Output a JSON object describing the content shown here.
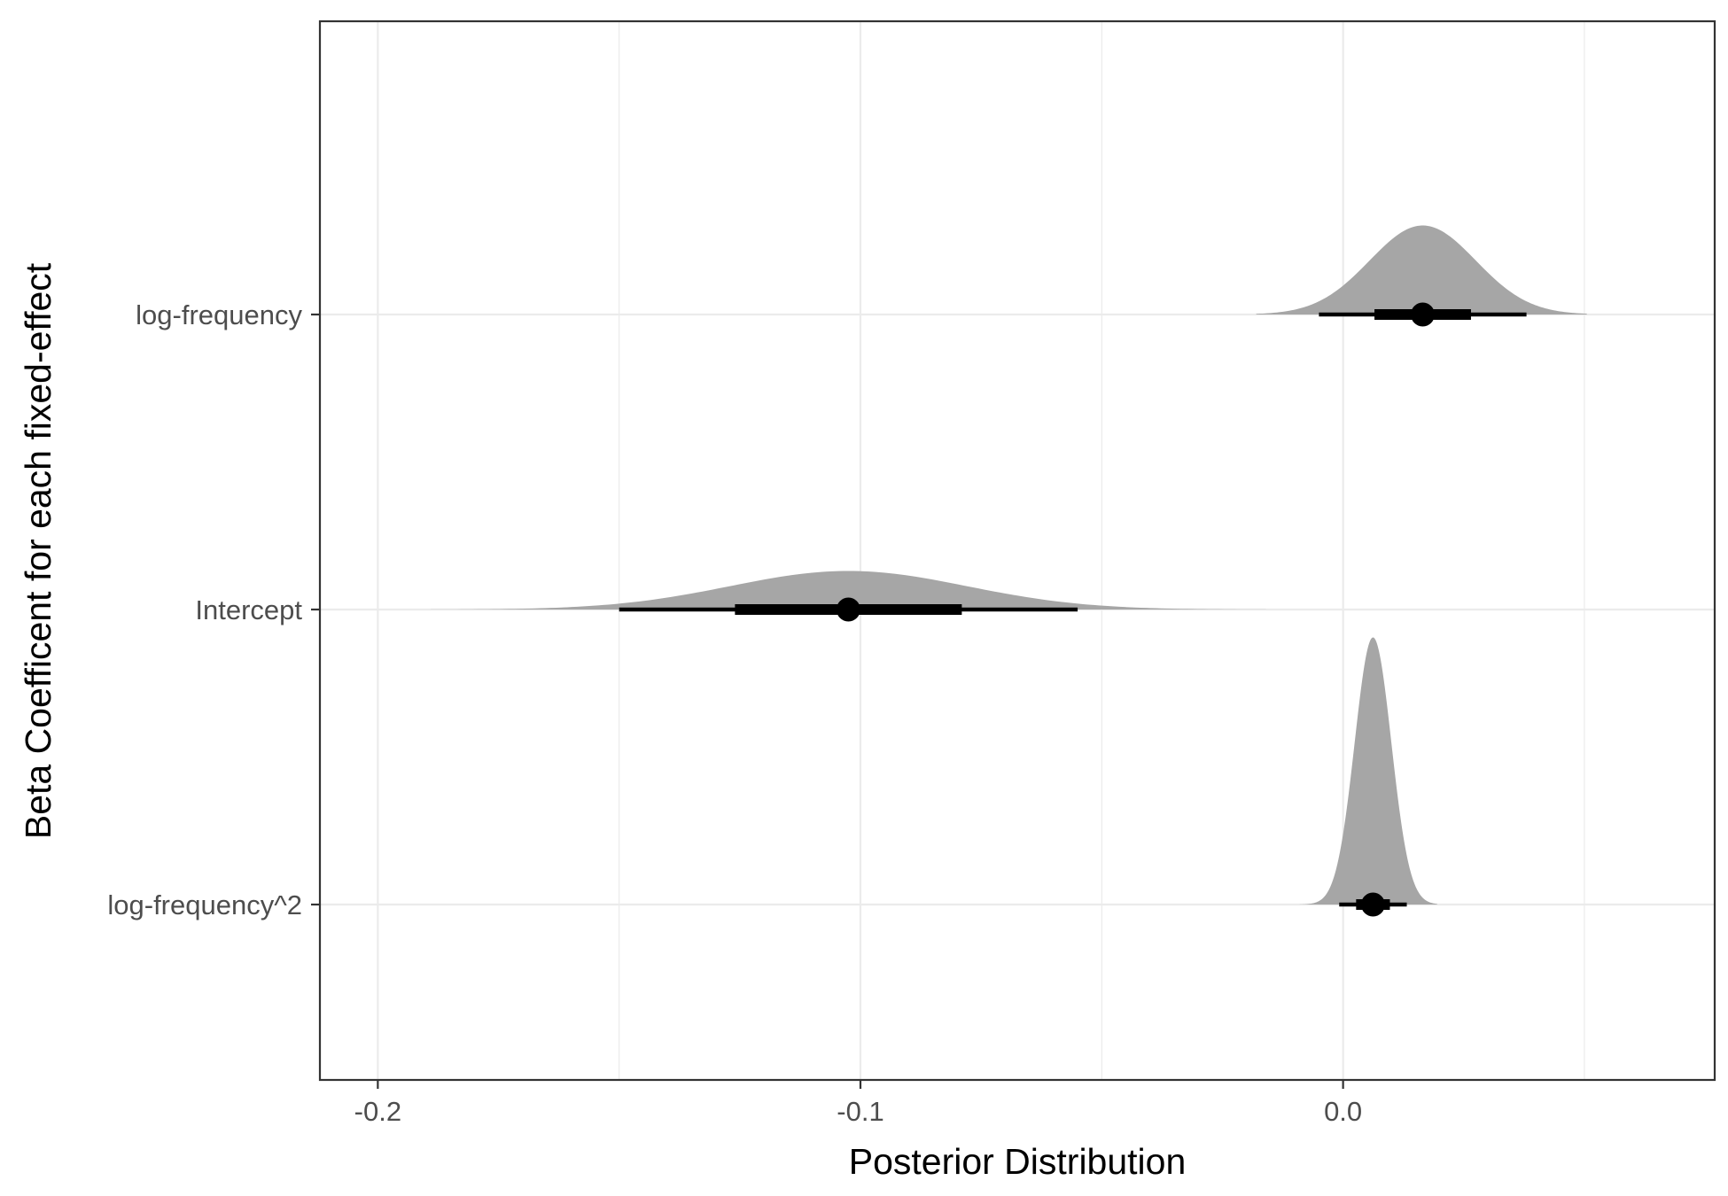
{
  "chart_data": {
    "type": "halfeye",
    "title": "",
    "xlabel": "Posterior Distribution",
    "ylabel": "Beta Coefficent for each fixed-effect",
    "xlim": [
      -0.212,
      0.077
    ],
    "x_ticks": [
      -0.2,
      -0.1,
      0.0
    ],
    "x_tick_labels": [
      "-0.2",
      "-0.1",
      "0.0"
    ],
    "x_minor_grid": [
      -0.15,
      -0.05,
      0.05
    ],
    "categories": [
      "log-frequency^2",
      "Intercept",
      "log-frequency"
    ],
    "grid": true,
    "fill_color": "#a6a6a6",
    "series": [
      {
        "label": "log-frequency",
        "median": 0.0165,
        "sd": 0.011,
        "interval_66": [
          0.0065,
          0.0265
        ],
        "interval_95": [
          -0.005,
          0.038
        ],
        "density_range": [
          -0.018,
          0.0505
        ],
        "height_rel": 0.3
      },
      {
        "label": "Intercept",
        "median": -0.1025,
        "sd": 0.0245,
        "interval_66": [
          -0.126,
          -0.079
        ],
        "interval_95": [
          -0.15,
          -0.055
        ],
        "density_range": [
          -0.189,
          -0.016
        ],
        "height_rel": 0.13
      },
      {
        "label": "log-frequency^2",
        "median": 0.0062,
        "sd": 0.0038,
        "interval_66": [
          0.0027,
          0.0097
        ],
        "interval_95": [
          -0.0008,
          0.0132
        ],
        "density_range": [
          -0.009,
          0.0195
        ],
        "height_rel": 0.9
      }
    ]
  }
}
